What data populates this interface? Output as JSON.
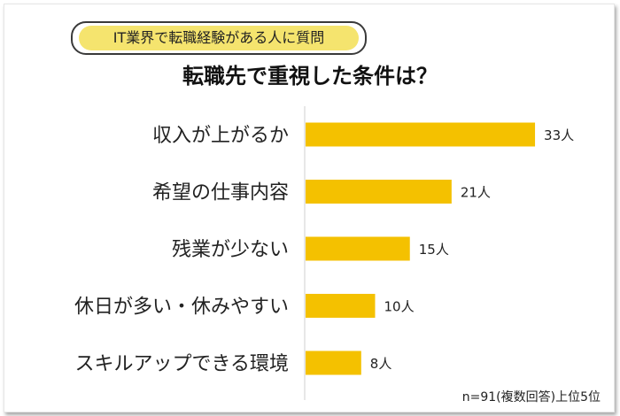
{
  "badge": {
    "text": "IT業界で転職経験がある人に質問"
  },
  "header": {
    "title": "転職先で重視した条件は？"
  },
  "footnote": "n=91(複数回答)上位5位",
  "colors": {
    "bar": "#f4c100",
    "axis": "#cfcfcf",
    "badge_fill": "#f5e46e"
  },
  "chart_data": {
    "type": "bar",
    "orientation": "horizontal",
    "title": "転職先で重視した条件は？",
    "categories": [
      "収入が上がるか",
      "希望の仕事内容",
      "残業が少ない",
      "休日が多い・休みやすい",
      "スキルアップできる環境"
    ],
    "values": [
      33,
      21,
      15,
      10,
      8
    ],
    "data_labels": [
      "33人",
      "21人",
      "15人",
      "10人",
      "8人"
    ],
    "unit": "人",
    "xlim": [
      0,
      40
    ],
    "grid": false,
    "legend": "none"
  }
}
